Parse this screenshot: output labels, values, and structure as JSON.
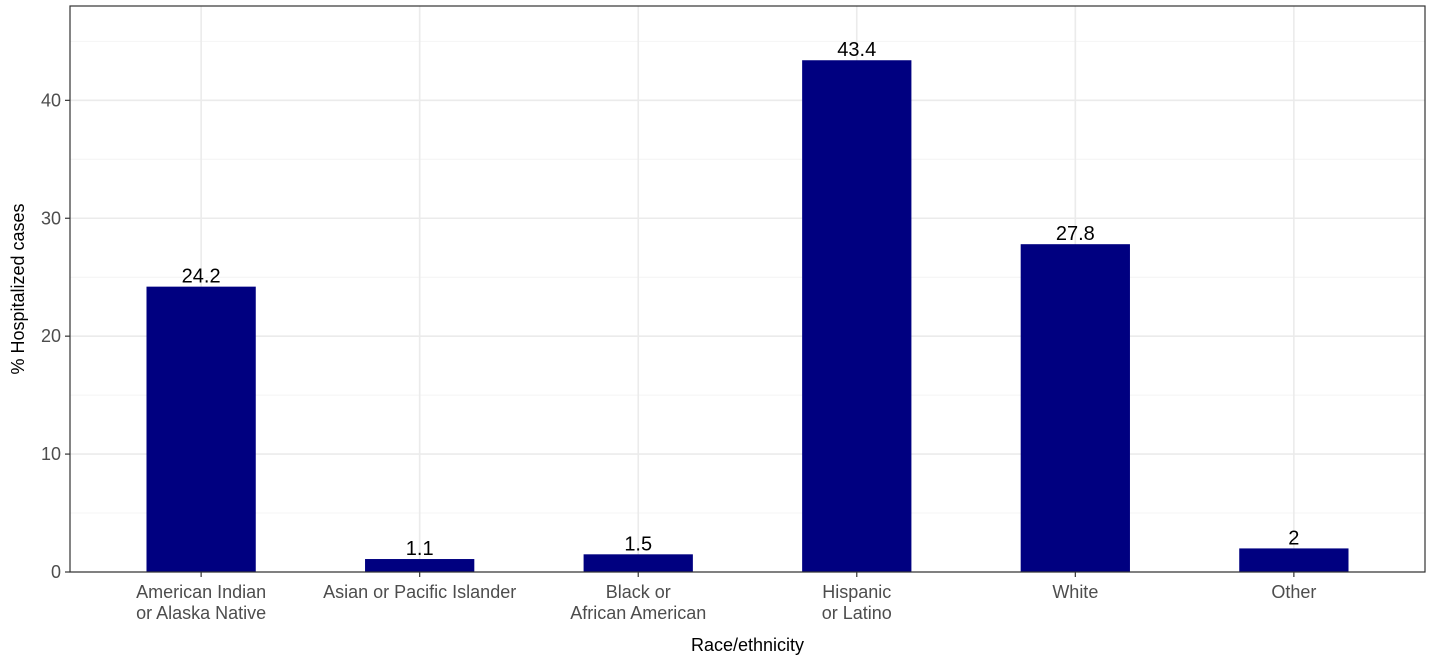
{
  "chart_data": {
    "type": "bar",
    "categories": [
      [
        "American Indian",
        "or Alaska Native"
      ],
      [
        "Asian or Pacific Islander"
      ],
      [
        "Black or",
        "African American"
      ],
      [
        "Hispanic",
        "or Latino"
      ],
      [
        "White"
      ],
      [
        "Other"
      ]
    ],
    "values": [
      24.2,
      1.1,
      1.5,
      43.4,
      27.8,
      2
    ],
    "data_labels": [
      "24.2",
      "1.1",
      "1.5",
      "43.4",
      "27.8",
      "2"
    ],
    "xlabel": "Race/ethnicity",
    "ylabel": "% Hospitalized cases",
    "ylim": [
      0,
      48
    ],
    "yticks": [
      0,
      10,
      20,
      30,
      40
    ],
    "grid": true,
    "legend": "none",
    "bar_color": "#000080",
    "grid_major_color": "#ebebeb",
    "grid_minor_color": "#f4f4f4",
    "panel_border_color": "#333333"
  }
}
